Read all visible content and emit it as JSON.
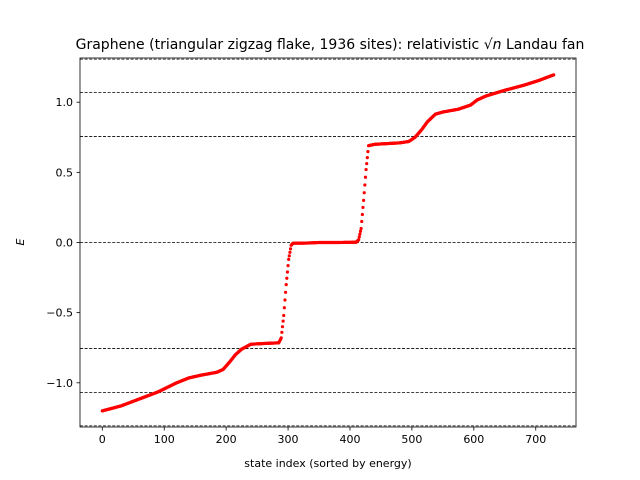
{
  "chart_data": {
    "type": "scatter",
    "title": {
      "prefix": "Graphene (triangular zigzag flake, 1936 sites): relativistic ",
      "sqrt_symbol": "√",
      "variable": "n",
      "suffix": " Landau fan"
    },
    "xlabel": "state index (sorted by energy)",
    "ylabel": "E",
    "xlim": [
      -36,
      765
    ],
    "ylim": [
      -1.315,
      1.315
    ],
    "xticks": [
      0,
      100,
      200,
      300,
      400,
      500,
      600,
      700
    ],
    "xtick_labels": [
      "0",
      "100",
      "200",
      "300",
      "400",
      "500",
      "600",
      "700"
    ],
    "yticks": [
      -1.0,
      -0.5,
      0.0,
      0.5,
      1.0
    ],
    "ytick_labels": [
      "−1.0",
      "−0.5",
      "0.0",
      "0.5",
      "1.0"
    ],
    "grid": false,
    "reference_lines": {
      "style": "dashed",
      "color": "#000000",
      "values": [
        -1.307,
        -1.069,
        -0.756,
        0.0,
        0.756,
        1.069,
        1.307
      ]
    },
    "series": [
      {
        "color": "#ff0000",
        "marker": "dot",
        "x_range": [
          0,
          729
        ],
        "profile": [
          [
            0,
            -1.2
          ],
          [
            30,
            -1.165
          ],
          [
            60,
            -1.115
          ],
          [
            90,
            -1.065
          ],
          [
            120,
            -1.0
          ],
          [
            140,
            -0.965
          ],
          [
            160,
            -0.945
          ],
          [
            185,
            -0.925
          ],
          [
            195,
            -0.905
          ],
          [
            205,
            -0.855
          ],
          [
            215,
            -0.8
          ],
          [
            225,
            -0.76
          ],
          [
            240,
            -0.725
          ],
          [
            260,
            -0.72
          ],
          [
            285,
            -0.715
          ],
          [
            289,
            -0.68
          ],
          [
            293,
            -0.52
          ],
          [
            297,
            -0.3
          ],
          [
            301,
            -0.12
          ],
          [
            305,
            -0.02
          ],
          [
            308,
            -0.005
          ],
          [
            330,
            -0.004
          ],
          [
            350,
            0.0
          ],
          [
            380,
            0.0
          ],
          [
            410,
            0.002
          ],
          [
            414,
            0.02
          ],
          [
            418,
            0.1
          ],
          [
            422,
            0.3
          ],
          [
            426,
            0.52
          ],
          [
            430,
            0.69
          ],
          [
            440,
            0.7
          ],
          [
            460,
            0.705
          ],
          [
            480,
            0.71
          ],
          [
            495,
            0.72
          ],
          [
            505,
            0.75
          ],
          [
            515,
            0.8
          ],
          [
            525,
            0.86
          ],
          [
            538,
            0.915
          ],
          [
            550,
            0.93
          ],
          [
            575,
            0.95
          ],
          [
            595,
            0.98
          ],
          [
            605,
            1.015
          ],
          [
            620,
            1.045
          ],
          [
            650,
            1.085
          ],
          [
            680,
            1.12
          ],
          [
            705,
            1.155
          ],
          [
            729,
            1.195
          ]
        ]
      }
    ]
  }
}
